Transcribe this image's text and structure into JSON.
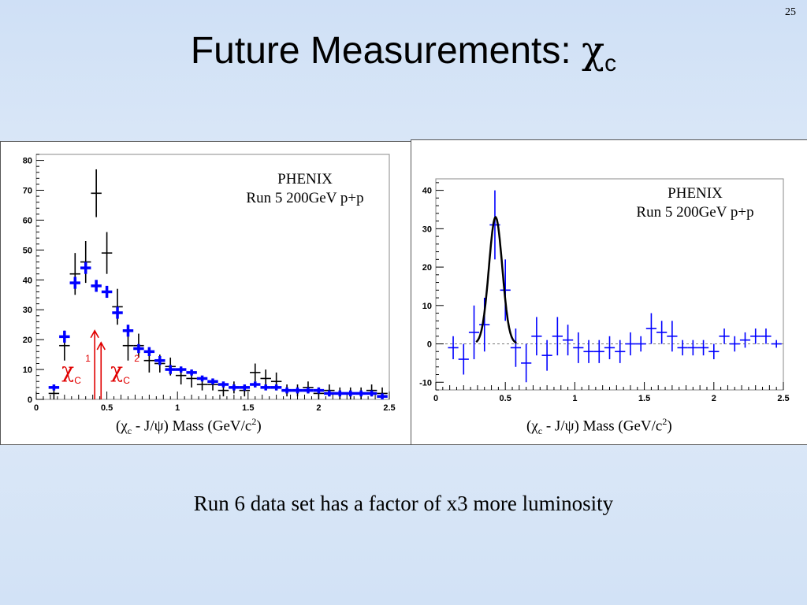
{
  "slide": {
    "number": "25",
    "title_text": "Future Measurements: ",
    "title_symbol": "χ",
    "title_subscript": "c",
    "footer": "Run 6 data set has a factor of x3 more luminosity"
  },
  "colors": {
    "black_series": "#000000",
    "blue_series": "#0000ff",
    "arrow_red": "#e00000",
    "fit_line": "#000000"
  },
  "chart_data": [
    {
      "type": "scatter",
      "annotation_line1": "PHENIX",
      "annotation_line2": "Run 5 200GeV p+p",
      "xlabel_parts": [
        "(",
        "χ",
        "c",
        " - J/ψ) Mass (GeV/c",
        "2",
        ")"
      ],
      "xlim": [
        0,
        2.5
      ],
      "ylim": [
        0,
        82
      ],
      "xticks": [
        0,
        0.5,
        1,
        1.5,
        2,
        2.5
      ],
      "xtick_labels": [
        "0",
        "0.5",
        "1",
        "1.5",
        "2",
        "2.5"
      ],
      "yticks": [
        0,
        10,
        20,
        30,
        40,
        50,
        60,
        70,
        80
      ],
      "ytick_labels": [
        "0",
        "10",
        "20",
        "30",
        "40",
        "50",
        "60",
        "70",
        "80"
      ],
      "arrows": [
        {
          "x": 0.414,
          "top": 23,
          "label": "χ",
          "sub": "C",
          "sup": "1",
          "color": "#e00000"
        },
        {
          "x": 0.459,
          "top": 19,
          "label": "χ",
          "sub": "C",
          "sup": "2",
          "color": "#e00000"
        }
      ],
      "series": [
        {
          "color": "#000000",
          "points": [
            {
              "x": 0.125,
              "y": 2,
              "err": 2
            },
            {
              "x": 0.2,
              "y": 18,
              "err": 5
            },
            {
              "x": 0.275,
              "y": 42,
              "err": 7
            },
            {
              "x": 0.35,
              "y": 46,
              "err": 7
            },
            {
              "x": 0.425,
              "y": 69,
              "err": 8
            },
            {
              "x": 0.5,
              "y": 49,
              "err": 7
            },
            {
              "x": 0.575,
              "y": 31,
              "err": 6
            },
            {
              "x": 0.65,
              "y": 18,
              "err": 5
            },
            {
              "x": 0.725,
              "y": 18,
              "err": 4
            },
            {
              "x": 0.8,
              "y": 13,
              "err": 4
            },
            {
              "x": 0.875,
              "y": 12,
              "err": 3
            },
            {
              "x": 0.95,
              "y": 11,
              "err": 3
            },
            {
              "x": 1.025,
              "y": 8,
              "err": 3
            },
            {
              "x": 1.1,
              "y": 7,
              "err": 3
            },
            {
              "x": 1.175,
              "y": 5,
              "err": 2
            },
            {
              "x": 1.25,
              "y": 5,
              "err": 2
            },
            {
              "x": 1.325,
              "y": 3,
              "err": 2
            },
            {
              "x": 1.4,
              "y": 4,
              "err": 2
            },
            {
              "x": 1.475,
              "y": 3,
              "err": 2
            },
            {
              "x": 1.55,
              "y": 9,
              "err": 3
            },
            {
              "x": 1.625,
              "y": 7,
              "err": 3
            },
            {
              "x": 1.7,
              "y": 6,
              "err": 3
            },
            {
              "x": 1.775,
              "y": 3,
              "err": 2
            },
            {
              "x": 1.85,
              "y": 3,
              "err": 2
            },
            {
              "x": 1.925,
              "y": 4,
              "err": 2
            },
            {
              "x": 2.0,
              "y": 2,
              "err": 2
            },
            {
              "x": 2.075,
              "y": 3,
              "err": 2
            },
            {
              "x": 2.15,
              "y": 2,
              "err": 2
            },
            {
              "x": 2.225,
              "y": 2,
              "err": 2
            },
            {
              "x": 2.3,
              "y": 2,
              "err": 2
            },
            {
              "x": 2.375,
              "y": 3,
              "err": 2
            },
            {
              "x": 2.45,
              "y": 2,
              "err": 2
            }
          ]
        },
        {
          "color": "#0000ff",
          "points": [
            {
              "x": 0.125,
              "y": 4,
              "err": 1
            },
            {
              "x": 0.2,
              "y": 21,
              "err": 2
            },
            {
              "x": 0.275,
              "y": 39,
              "err": 2
            },
            {
              "x": 0.35,
              "y": 44,
              "err": 2
            },
            {
              "x": 0.425,
              "y": 38,
              "err": 2
            },
            {
              "x": 0.5,
              "y": 36,
              "err": 2
            },
            {
              "x": 0.575,
              "y": 29,
              "err": 2
            },
            {
              "x": 0.65,
              "y": 23,
              "err": 2
            },
            {
              "x": 0.725,
              "y": 17,
              "err": 1.5
            },
            {
              "x": 0.8,
              "y": 16,
              "err": 1.5
            },
            {
              "x": 0.875,
              "y": 13,
              "err": 1.5
            },
            {
              "x": 0.95,
              "y": 10,
              "err": 1.5
            },
            {
              "x": 1.025,
              "y": 10,
              "err": 1
            },
            {
              "x": 1.1,
              "y": 9,
              "err": 1
            },
            {
              "x": 1.175,
              "y": 7,
              "err": 1
            },
            {
              "x": 1.25,
              "y": 6,
              "err": 1
            },
            {
              "x": 1.325,
              "y": 5,
              "err": 1
            },
            {
              "x": 1.4,
              "y": 4,
              "err": 1
            },
            {
              "x": 1.475,
              "y": 4,
              "err": 1
            },
            {
              "x": 1.55,
              "y": 5,
              "err": 1
            },
            {
              "x": 1.625,
              "y": 4,
              "err": 1
            },
            {
              "x": 1.7,
              "y": 4,
              "err": 1
            },
            {
              "x": 1.775,
              "y": 3,
              "err": 1
            },
            {
              "x": 1.85,
              "y": 3,
              "err": 1
            },
            {
              "x": 1.925,
              "y": 3,
              "err": 1
            },
            {
              "x": 2.0,
              "y": 3,
              "err": 1
            },
            {
              "x": 2.075,
              "y": 2,
              "err": 1
            },
            {
              "x": 2.15,
              "y": 2,
              "err": 1
            },
            {
              "x": 2.225,
              "y": 2,
              "err": 1
            },
            {
              "x": 2.3,
              "y": 2,
              "err": 1
            },
            {
              "x": 2.375,
              "y": 2,
              "err": 1
            },
            {
              "x": 2.45,
              "y": 1,
              "err": 1
            }
          ]
        }
      ]
    },
    {
      "type": "scatter",
      "annotation_line1": "PHENIX",
      "annotation_line2": "Run 5 200GeV p+p",
      "xlabel_parts": [
        "(",
        "χ",
        "c",
        " - J/ψ) Mass (GeV/c",
        "2",
        ")"
      ],
      "xlim": [
        0,
        2.5
      ],
      "ylim": [
        -12,
        43
      ],
      "xticks": [
        0,
        0.5,
        1,
        1.5,
        2,
        2.5
      ],
      "xtick_labels": [
        "0",
        "0.5",
        "1",
        "1.5",
        "2",
        "2.5"
      ],
      "yticks": [
        -10,
        0,
        10,
        20,
        30,
        40
      ],
      "ytick_labels": [
        "-10",
        "0",
        "10",
        "20",
        "30",
        "40"
      ],
      "zero_line": true,
      "fit": {
        "type": "gaussian",
        "mean": 0.43,
        "sigma": 0.048,
        "amplitude": 33,
        "range": [
          0.29,
          0.58
        ]
      },
      "series": [
        {
          "color": "#0000ff",
          "points": [
            {
              "x": 0.125,
              "y": -1,
              "err": 3
            },
            {
              "x": 0.2,
              "y": -4,
              "err": 4
            },
            {
              "x": 0.275,
              "y": 3,
              "err": 7
            },
            {
              "x": 0.35,
              "y": 5,
              "err": 7
            },
            {
              "x": 0.425,
              "y": 31,
              "err": 9
            },
            {
              "x": 0.5,
              "y": 14,
              "err": 8
            },
            {
              "x": 0.575,
              "y": -1,
              "err": 5
            },
            {
              "x": 0.65,
              "y": -5,
              "err": 5
            },
            {
              "x": 0.725,
              "y": 2,
              "err": 5
            },
            {
              "x": 0.8,
              "y": -3,
              "err": 4
            },
            {
              "x": 0.875,
              "y": 2,
              "err": 5
            },
            {
              "x": 0.95,
              "y": 1,
              "err": 4
            },
            {
              "x": 1.025,
              "y": -1,
              "err": 4
            },
            {
              "x": 1.1,
              "y": -2,
              "err": 3
            },
            {
              "x": 1.175,
              "y": -2,
              "err": 3
            },
            {
              "x": 1.25,
              "y": -1,
              "err": 3
            },
            {
              "x": 1.325,
              "y": -2,
              "err": 3
            },
            {
              "x": 1.4,
              "y": 0,
              "err": 3
            },
            {
              "x": 1.475,
              "y": 0,
              "err": 2
            },
            {
              "x": 1.55,
              "y": 4,
              "err": 4
            },
            {
              "x": 1.625,
              "y": 3,
              "err": 3
            },
            {
              "x": 1.7,
              "y": 2,
              "err": 4
            },
            {
              "x": 1.775,
              "y": -1,
              "err": 2
            },
            {
              "x": 1.85,
              "y": -1,
              "err": 2
            },
            {
              "x": 1.925,
              "y": -1,
              "err": 2
            },
            {
              "x": 2.0,
              "y": -2,
              "err": 2
            },
            {
              "x": 2.075,
              "y": 2,
              "err": 2
            },
            {
              "x": 2.15,
              "y": 0,
              "err": 2
            },
            {
              "x": 2.225,
              "y": 1,
              "err": 2
            },
            {
              "x": 2.3,
              "y": 2,
              "err": 2
            },
            {
              "x": 2.375,
              "y": 2,
              "err": 2
            },
            {
              "x": 2.45,
              "y": 0,
              "err": 1
            }
          ]
        }
      ]
    }
  ]
}
